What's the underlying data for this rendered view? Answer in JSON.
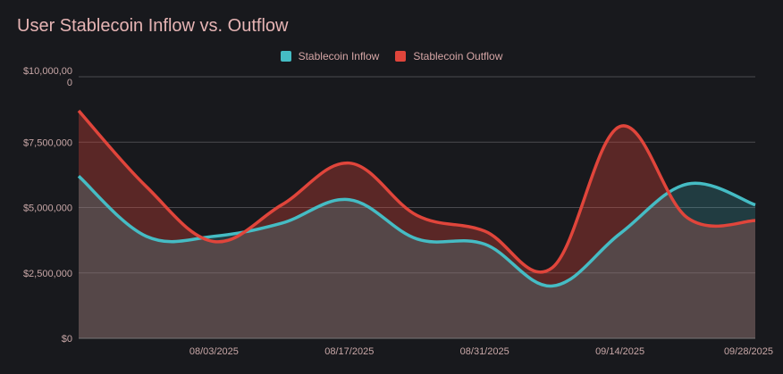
{
  "chart_data": {
    "type": "area",
    "title": "User Stablecoin Inflow vs. Outflow",
    "xlabel": "",
    "ylabel": "",
    "ylim": [
      0,
      10000000
    ],
    "yticks": [
      "$0",
      "$2,500,000",
      "$5,000,000",
      "$7,500,000",
      "$10,000,00\n0"
    ],
    "ytick_values": [
      0,
      2500000,
      5000000,
      7500000,
      10000000
    ],
    "x": [
      "07/20/2025",
      "07/27/2025",
      "08/03/2025",
      "08/10/2025",
      "08/17/2025",
      "08/24/2025",
      "08/31/2025",
      "09/07/2025",
      "09/14/2025",
      "09/21/2025",
      "09/28/2025"
    ],
    "xticks": [
      "08/03/2025",
      "08/17/2025",
      "08/31/2025",
      "09/14/2025",
      "09/28/2025"
    ],
    "legend_position": "top-center",
    "grid": true,
    "series": [
      {
        "name": "Stablecoin Inflow",
        "color": "#45bcc4",
        "values": [
          6200000,
          3900000,
          3900000,
          4400000,
          5300000,
          3800000,
          3600000,
          2000000,
          4000000,
          5900000,
          5100000
        ]
      },
      {
        "name": "Stablecoin Outflow",
        "color": "#e0453b",
        "values": [
          8700000,
          5800000,
          3700000,
          5100000,
          6700000,
          4700000,
          4100000,
          2700000,
          8100000,
          4600000,
          4500000
        ]
      }
    ]
  }
}
